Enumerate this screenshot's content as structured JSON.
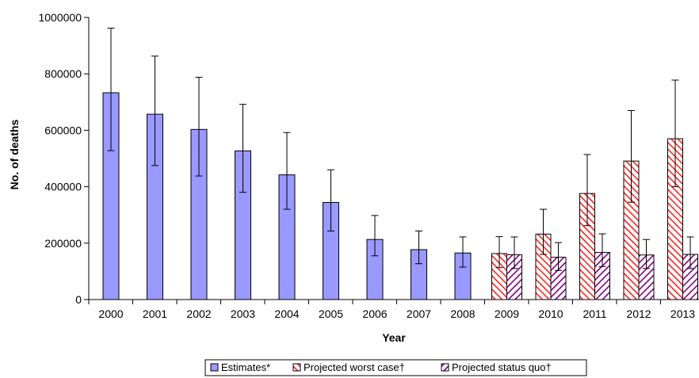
{
  "chart_data": {
    "type": "bar",
    "title": "",
    "xlabel": "Year",
    "ylabel": "No. of deaths",
    "ylim": [
      0,
      1000000
    ],
    "yticks": [
      "0",
      "200000",
      "400000",
      "600000",
      "800000",
      "1000000"
    ],
    "categories": [
      "2000",
      "2001",
      "2002",
      "2003",
      "2004",
      "2005",
      "2006",
      "2007",
      "2008",
      "2009",
      "2010",
      "2011",
      "2012",
      "2013"
    ],
    "grid": false,
    "legend_placement": "bottom",
    "series": [
      {
        "name": "Estimates*",
        "pattern": "solid",
        "fill": "#9999ff",
        "values": [
          733000,
          657000,
          603000,
          527000,
          442000,
          344000,
          213000,
          177000,
          165000,
          null,
          null,
          null,
          null,
          null
        ],
        "error_low": [
          528000,
          475000,
          438000,
          380000,
          320000,
          243000,
          155000,
          127000,
          115000,
          null,
          null,
          null,
          null,
          null
        ],
        "error_high": [
          962000,
          863000,
          788000,
          692000,
          592000,
          460000,
          298000,
          243000,
          222000,
          null,
          null,
          null,
          null,
          null
        ]
      },
      {
        "name": "Projected worst case†",
        "pattern": "diagonal-hatch",
        "fill": "#ff2222",
        "values": [
          null,
          null,
          null,
          null,
          null,
          null,
          null,
          null,
          null,
          163000,
          232000,
          376000,
          491000,
          570000
        ],
        "error_low": [
          null,
          null,
          null,
          null,
          null,
          null,
          null,
          null,
          null,
          113000,
          160000,
          262000,
          345000,
          400000
        ],
        "error_high": [
          null,
          null,
          null,
          null,
          null,
          null,
          null,
          null,
          null,
          223000,
          320000,
          514000,
          670000,
          778000
        ]
      },
      {
        "name": "Projected status quo†",
        "pattern": "diagonal-hatch",
        "fill": "#800080",
        "values": [
          null,
          null,
          null,
          null,
          null,
          null,
          null,
          null,
          null,
          159000,
          150000,
          167000,
          158000,
          160000
        ],
        "error_low": [
          null,
          null,
          null,
          null,
          null,
          null,
          null,
          null,
          null,
          110000,
          103000,
          117000,
          110000,
          110000
        ],
        "error_high": [
          null,
          null,
          null,
          null,
          null,
          null,
          null,
          null,
          null,
          222000,
          202000,
          233000,
          213000,
          222000
        ]
      }
    ]
  }
}
